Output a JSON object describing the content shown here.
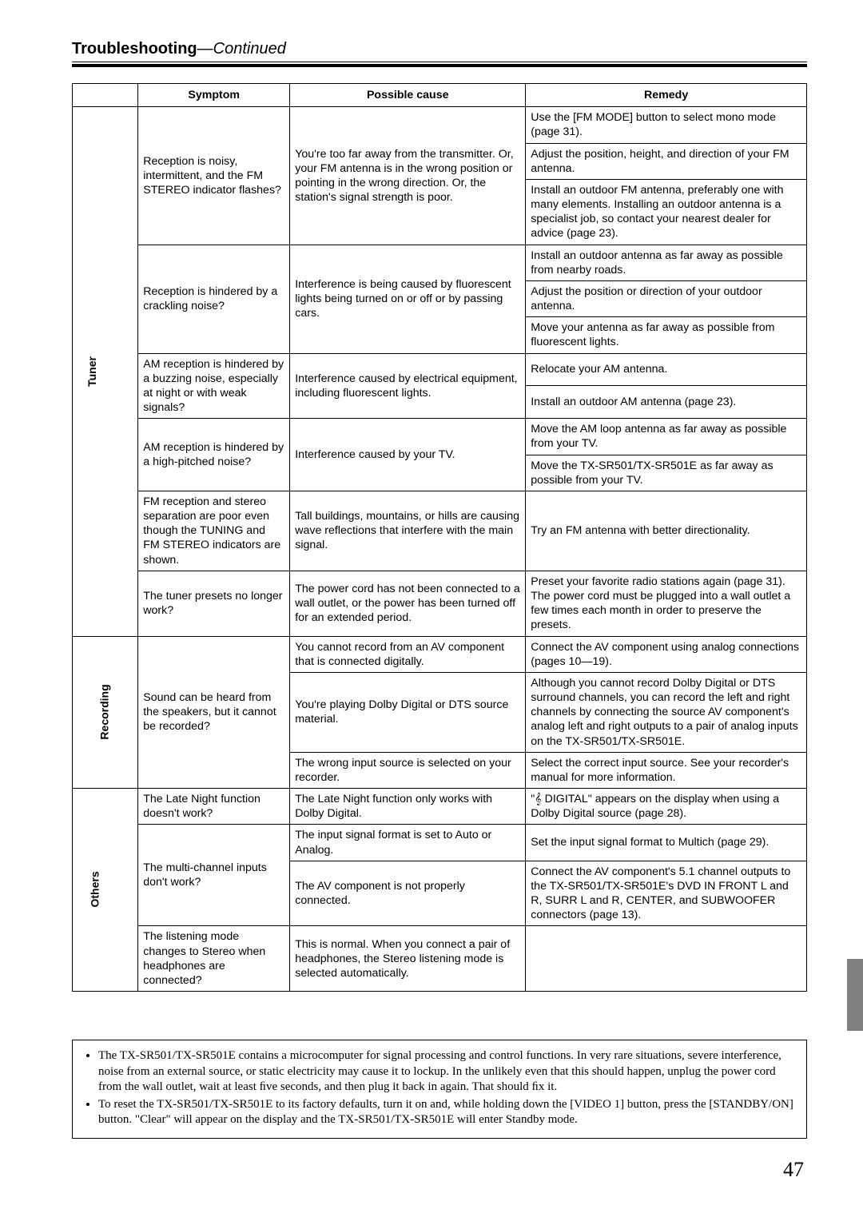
{
  "heading": {
    "bold": "Troubleshooting",
    "sep": "—",
    "italic": "Continued"
  },
  "columns": {
    "symptom": "Symptom",
    "cause": "Possible cause",
    "remedy": "Remedy"
  },
  "cats": {
    "tuner": "Tuner",
    "recording": "Recording",
    "others": "Others"
  },
  "tuner": {
    "r1": {
      "symptom": "Reception is noisy, intermittent, and the FM STEREO indicator ﬂashes?",
      "cause": "You're too far away from the transmitter. Or, your FM antenna is in the wrong position or pointing in the wrong direction. Or, the station's signal strength is poor.",
      "rem1": "Use the [FM MODE] button to select mono mode (page 31).",
      "rem2": "Adjust the position, height, and direction of your FM antenna.",
      "rem3": "Install an outdoor FM antenna, preferably one with many elements. Installing an outdoor antenna is a specialist job, so contact your nearest dealer for advice (page 23)."
    },
    "r2": {
      "symptom": "Reception is hindered by a crackling noise?",
      "cause": "Interference is being caused by ﬂuorescent lights being turned on or off or by passing cars.",
      "rem1": "Install an outdoor antenna as far away as possible from nearby roads.",
      "rem2": "Adjust the position or direction of your outdoor antenna.",
      "rem3": "Move your antenna as far away as possible from ﬂuorescent lights."
    },
    "r3": {
      "symptom": "AM reception is hindered by a buzzing noise, especially at night or with weak signals?",
      "cause": "Interference caused by electrical equipment, including ﬂuorescent lights.",
      "rem1": "Relocate your AM antenna.",
      "rem2": "Install an outdoor AM antenna (page 23)."
    },
    "r4": {
      "symptom": "AM reception is hindered by a high-pitched noise?",
      "cause": "Interference caused by your TV.",
      "rem1": "Move the AM loop antenna as far away as possible from your TV.",
      "rem2": "Move the TX-SR501/TX-SR501E as far away as possible from your TV."
    },
    "r5": {
      "symptom": "FM reception and stereo separation are poor even though the TUNING and FM STEREO indicators are shown.",
      "cause": "Tall buildings, mountains, or hills are causing wave reﬂections that interfere with the main signal.",
      "rem1": "Try an FM antenna with better directionality."
    },
    "r6": {
      "symptom": "The tuner presets no longer work?",
      "cause": "The power cord has not been connected to a wall outlet, or the power has been turned off for an extended period.",
      "rem1": "Preset your favorite radio stations again (page 31). The power cord must be plugged into a wall outlet a few times each month in order to preserve the presets."
    }
  },
  "recording": {
    "r1": {
      "symptom": "Sound can be heard from the speakers, but it cannot be recorded?",
      "cause1": "You cannot record from an AV component that is connected digitally.",
      "rem1": "Connect the AV component using analog connections (pages 10—19).",
      "cause2": "You're playing Dolby Digital or DTS source material.",
      "rem2": "Although you cannot record Dolby Digital or DTS surround channels, you can record the left and right channels by connecting the source AV component's analog left and right outputs to a pair of analog inputs on the TX-SR501/TX-SR501E.",
      "cause3": "The wrong input source is selected on your recorder.",
      "rem3": "Select the correct input source. See your recorder's manual for more information."
    }
  },
  "others": {
    "r1": {
      "symptom": "The Late Night function doesn't work?",
      "cause": "The Late Night function only works with Dolby Digital.",
      "rem": "\"𝄞 DIGITAL\" appears on the display when using a Dolby Digital source (page 28)."
    },
    "r2": {
      "symptom": "The multi-channel inputs don't work?",
      "cause1": "The input signal format is set to Auto or Analog.",
      "rem1": "Set the input signal format to Multich (page 29).",
      "cause2": "The AV component is not properly connected.",
      "rem2": "Connect the AV component's 5.1 channel outputs to the TX-SR501/TX-SR501E's DVD IN FRONT L and R, SURR L and R, CENTER, and SUBWOOFER connectors (page 13)."
    },
    "r3": {
      "symptom": "The listening mode changes to Stereo when headphones are connected?",
      "cause": "This is normal. When you connect a pair of headphones, the Stereo listening mode is selected automatically.",
      "rem": ""
    }
  },
  "notes": {
    "n1": "The TX-SR501/TX-SR501E contains a microcomputer for signal processing and control functions. In very rare situations, severe interference, noise from an external source, or static electricity may cause it to lockup. In the unlikely even that this should happen, unplug the power cord from the wall outlet, wait at least ﬁve seconds, and then plug it back in again. That should ﬁx it.",
    "n2": "To reset the TX-SR501/TX-SR501E to its factory defaults, turn it on and, while holding down the [VIDEO 1] button, press the [STANDBY/ON] button. \"Clear\" will appear on the display and the TX-SR501/TX-SR501E will enter Standby mode."
  },
  "pagenum": "47"
}
